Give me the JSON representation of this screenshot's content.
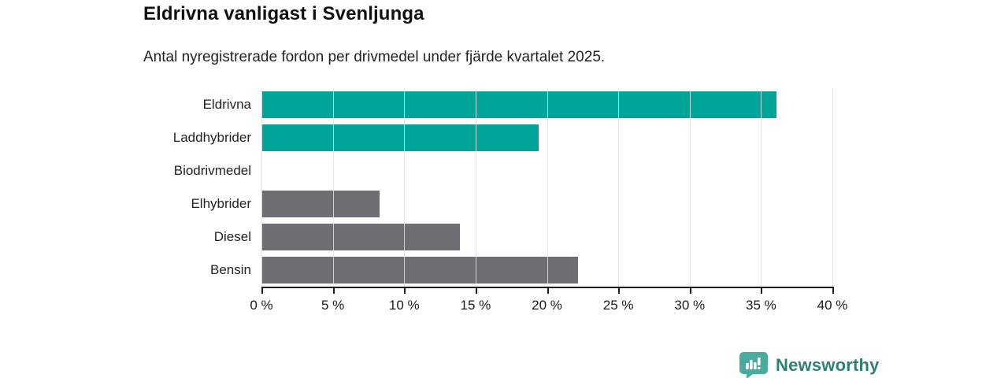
{
  "header": {
    "title": "Eldrivna vanligast i Svenljunga",
    "subtitle": "Antal nyregistrerade fordon per drivmedel under fjärde kvartalet 2025."
  },
  "chart_data": {
    "type": "bar",
    "orientation": "horizontal",
    "title": "Eldrivna vanligast i Svenljunga",
    "subtitle": "Antal nyregistrerade fordon per drivmedel under fjärde kvartalet 2025.",
    "categories": [
      "Eldrivna",
      "Laddhybrider",
      "Biodrivmedel",
      "Elhybrider",
      "Diesel",
      "Bensin"
    ],
    "values": [
      36.1,
      19.4,
      0,
      8.3,
      13.9,
      22.2
    ],
    "unit": "%",
    "bar_colors": [
      "#00a499",
      "#00a499",
      "#00a499",
      "#6e6e73",
      "#6e6e73",
      "#6e6e73"
    ],
    "xlim": [
      0,
      40
    ],
    "x_ticks": [
      0,
      5,
      10,
      15,
      20,
      25,
      30,
      35,
      40
    ],
    "x_tick_labels": [
      "0 %",
      "5 %",
      "10 %",
      "15 %",
      "20 %",
      "25 %",
      "30 %",
      "35 %",
      "40 %"
    ],
    "grid": true,
    "legend": false
  },
  "footer": {
    "brand": "Newsworthy",
    "brand_text_color": "#2f8177",
    "icon": "bar-chart-badge-icon",
    "icon_color": "#48ab9d"
  },
  "colors": {
    "accent_teal": "#00a499",
    "neutral_gray": "#6e6e73",
    "gridline": "#e3e3e3",
    "axis": "#1a1a1a",
    "background": "#ffffff"
  }
}
